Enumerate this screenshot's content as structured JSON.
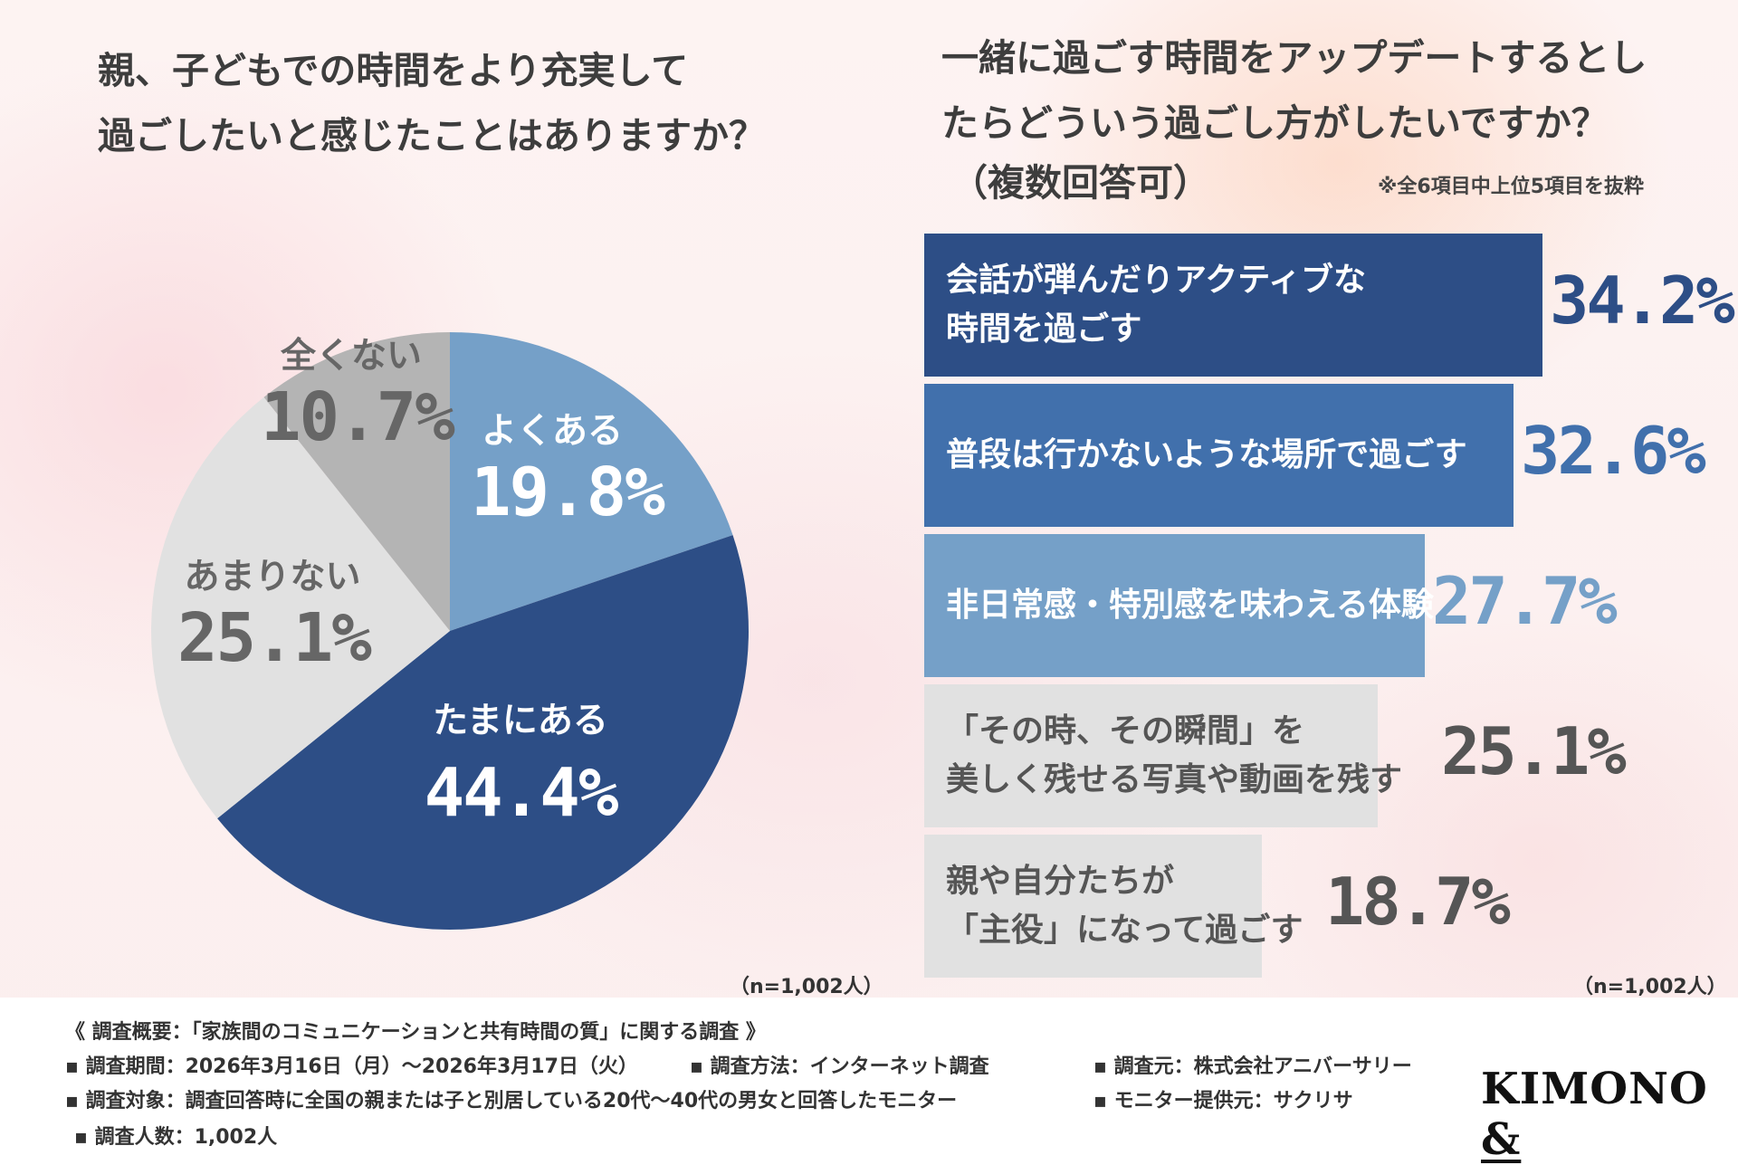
{
  "left_title": "親、子どもでの時間をより充実して\n過ごしたいと感じたことはありますか？",
  "right_title": "一緒に過ごす時間をアップデートするとし\nたらどういう過ごし方がしたいですか？",
  "right_subtitle": "（複数回答可）",
  "right_note": "※全6項目中上位5項目を抜粋",
  "pie_n": "（n=1,002人）",
  "bar_n": "（n=1,002人）",
  "colors": {
    "navy": "#2d4e86",
    "mid_blue": "#4170ac",
    "light_blue": "#75a0c8",
    "light_gray": "#e1e1e1",
    "gray": "#b4b4b4"
  },
  "chart_data": [
    {
      "type": "pie",
      "title": "親、子どもでの時間をより充実して過ごしたいと感じたことはありますか？",
      "slices": [
        {
          "label": "よくある",
          "value": 19.8,
          "text": "19.8%",
          "color": "#75a0c8"
        },
        {
          "label": "たまにある",
          "value": 44.4,
          "text": "44.4%",
          "color": "#2d4e86"
        },
        {
          "label": "あまりない",
          "value": 25.1,
          "text": "25.1%",
          "color": "#e1e1e1"
        },
        {
          "label": "全くない",
          "value": 10.7,
          "text": "10.7%",
          "color": "#b4b4b4"
        }
      ]
    },
    {
      "type": "bar",
      "orientation": "horizontal",
      "title": "一緒に過ごす時間をアップデートするとしたらどういう過ごし方がしたいですか？",
      "xlim": [
        0,
        34.2
      ],
      "bars": [
        {
          "label": "会話が弾んだりアクティブな\n時間を過ごす",
          "value": 34.2,
          "text": "34.2%",
          "color": "#2d4e86",
          "text_color": "#ffffff",
          "value_color": "#2d4e86"
        },
        {
          "label": "普段は行かないような場所で過ごす",
          "value": 32.6,
          "text": "32.6%",
          "color": "#4170ac",
          "text_color": "#ffffff",
          "value_color": "#4170ac"
        },
        {
          "label": "非日常感・特別感を味わえる体験",
          "value": 27.7,
          "text": "27.7%",
          "color": "#75a0c8",
          "text_color": "#ffffff",
          "value_color": "#75a0c8"
        },
        {
          "label": "「その時、その瞬間」を\n美しく残せる写真や動画を残す",
          "value": 25.1,
          "text": "25.1%",
          "color": "#e1e1e1",
          "text_color": "#555555",
          "value_color": "#555555"
        },
        {
          "label": "親や自分たちが\n「主役」になって過ごす",
          "value": 18.7,
          "text": "18.7%",
          "color": "#e1e1e1",
          "text_color": "#555555",
          "value_color": "#555555"
        }
      ]
    }
  ],
  "footer": {
    "overview": "《 調査概要：「家族間のコミュニケーションと共有時間の質」に関する調査 》",
    "period": "▪ 調査期間：2026年3月16日（月）〜2026年3月17日（火）",
    "method": "▪ 調査方法：インターネット調査",
    "source": "▪ 調査元：株式会社アニバーサリー",
    "target": "▪ 調査対象：調査回答時に全国の親または子と別居している20代〜40代の男女と回答したモニター",
    "provider": "▪ モニター提供元：サクリサ",
    "count": "▪ 調査人数：1,002人"
  },
  "logo": {
    "main": "KIMONO",
    "amp": "&"
  }
}
